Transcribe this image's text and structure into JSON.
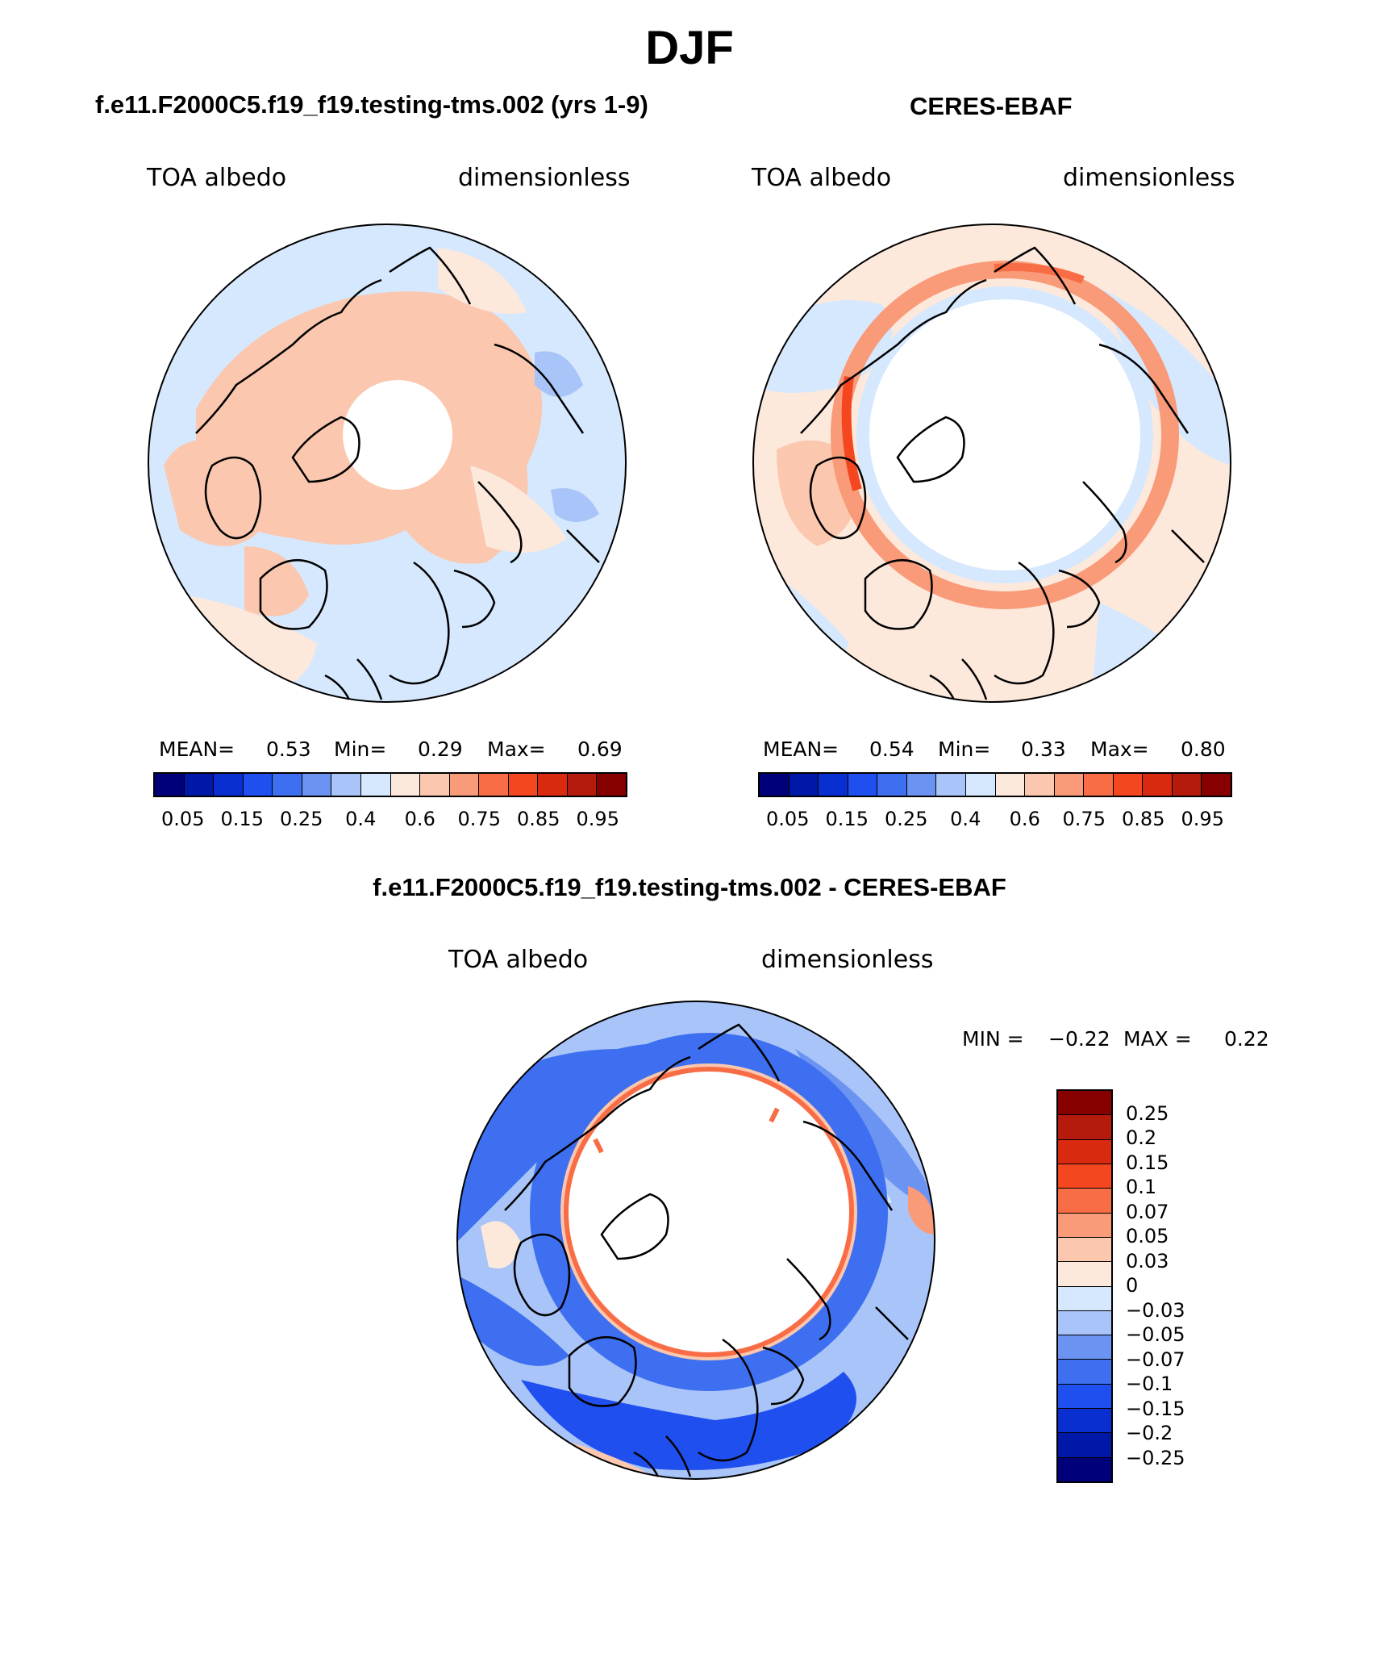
{
  "title": "DJF",
  "panels": {
    "model": {
      "heading": "f.e11.F2000C5.f19_f19.testing-tms.002 (yrs 1-9)",
      "left_label": "TOA albedo",
      "right_label": "dimensionless",
      "mean_label": "MEAN=",
      "mean": "0.53",
      "min_label": "Min=",
      "min": "0.29",
      "max_label": "Max=",
      "max": "0.69"
    },
    "obs": {
      "heading": "CERES-EBAF",
      "left_label": "TOA albedo",
      "right_label": "dimensionless",
      "mean_label": "MEAN=",
      "mean": "0.54",
      "min_label": "Min=",
      "min": "0.33",
      "max_label": "Max=",
      "max": "0.80"
    },
    "diff": {
      "heading": "f.e11.F2000C5.f19_f19.testing-tms.002 - CERES-EBAF",
      "left_label": "TOA albedo",
      "right_label": "dimensionless",
      "min_label": "MIN =",
      "min": "−0.22",
      "max_label": "MAX =",
      "max": "0.22"
    }
  },
  "colorbar_abs": {
    "colors": [
      "#00007a",
      "#0018a8",
      "#0a2fd0",
      "#1f4fef",
      "#3d6ff0",
      "#6b93f2",
      "#a8c4f8",
      "#d6e8fd",
      "#fde9dc",
      "#fbc7ae",
      "#f99a78",
      "#f86d45",
      "#f4461f",
      "#d92a10",
      "#b41b0d",
      "#860000"
    ],
    "ticks": [
      "0.05",
      "0.15",
      "0.25",
      "0.4",
      "0.6",
      "0.75",
      "0.85",
      "0.95"
    ]
  },
  "colorbar_diff": {
    "colors": [
      "#860000",
      "#b41b0d",
      "#d92a10",
      "#f4461f",
      "#f86d45",
      "#f99a78",
      "#fbc7ae",
      "#fde9dc",
      "#d6e8fd",
      "#a8c4f8",
      "#6b93f2",
      "#3d6ff0",
      "#1f4fef",
      "#0a2fd0",
      "#0018a8",
      "#00007a"
    ],
    "ticks": [
      "0.25",
      "0.2",
      "0.15",
      "0.1",
      "0.07",
      "0.05",
      "0.03",
      "0",
      "−0.03",
      "−0.05",
      "−0.07",
      "−0.1",
      "−0.15",
      "−0.2",
      "−0.25"
    ]
  }
}
